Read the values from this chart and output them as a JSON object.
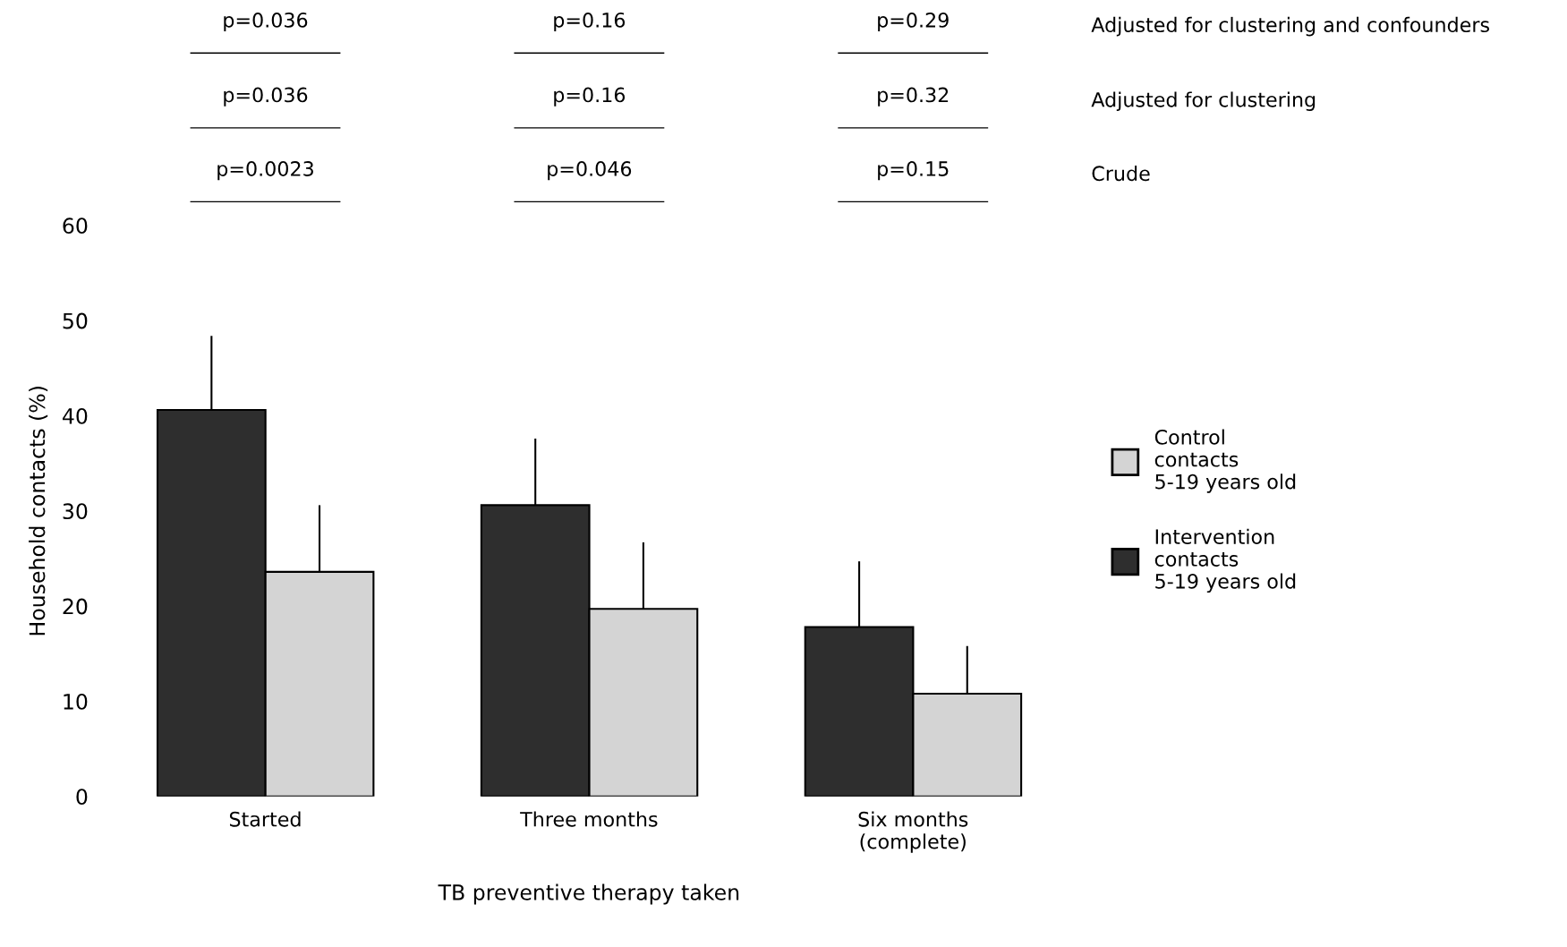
{
  "chart_data": {
    "type": "bar",
    "xlabel": "TB preventive therapy taken",
    "ylabel": "Household contacts (%)",
    "categories": [
      "Started",
      "Three months",
      "Six months\n(complete)"
    ],
    "series": [
      {
        "name": "Intervention\ncontacts\n5-19 years old",
        "color": "#2e2e2e",
        "values": [
          40.6,
          30.6,
          17.8
        ],
        "errors": [
          [
            40.6,
            48.4
          ],
          [
            30.6,
            37.6
          ],
          [
            17.8,
            24.7
          ]
        ]
      },
      {
        "name": "Control\ncontacts\n5-19 years old",
        "color": "#d4d4d4",
        "values": [
          23.6,
          19.7,
          10.8
        ],
        "errors": [
          [
            23.6,
            30.6
          ],
          [
            19.7,
            26.7
          ],
          [
            10.8,
            15.8
          ]
        ]
      }
    ],
    "ylim": [
      0,
      60
    ],
    "yticks": [
      0,
      10,
      20,
      30,
      40,
      50,
      60
    ],
    "grid": false,
    "legend": "right",
    "annotations": [
      "p=0.036",
      "p=0.16",
      "p=0.29",
      "Adjusted for clustering and confounders",
      "p=0.036",
      "p=0.16",
      "p=0.32",
      "Adjusted for clustering",
      "p=0.0023",
      "p=0.046",
      "p=0.15",
      "Crude"
    ]
  }
}
